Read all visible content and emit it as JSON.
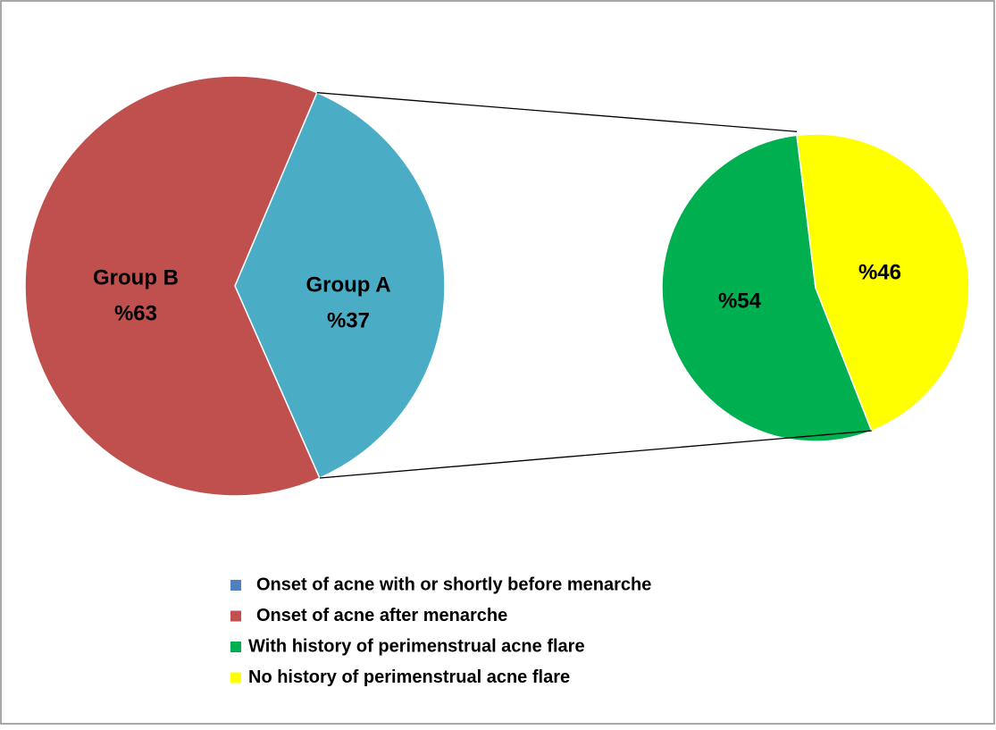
{
  "chart_data": [
    {
      "type": "pie",
      "categories": [
        "Group A",
        "Group B"
      ],
      "values": [
        37,
        63
      ],
      "value_labels": [
        "%37",
        "%63"
      ],
      "colors": [
        "#4bacc6",
        "#c0504d"
      ]
    },
    {
      "type": "pie",
      "values": [
        54,
        46
      ],
      "value_labels": [
        "%54",
        "%46"
      ],
      "colors": [
        "#00b050",
        "#ffff00"
      ]
    }
  ],
  "legend": [
    {
      "name": "Onset of acne with or shortly before menarche",
      "color": "#4f81bd"
    },
    {
      "name": "Onset of acne after menarche",
      "color": "#c0504d"
    },
    {
      "name": "With history of perimenstrual acne flare",
      "color": "#00b050"
    },
    {
      "name": "No history of perimenstrual acne flare",
      "color": "#ffff00"
    }
  ]
}
